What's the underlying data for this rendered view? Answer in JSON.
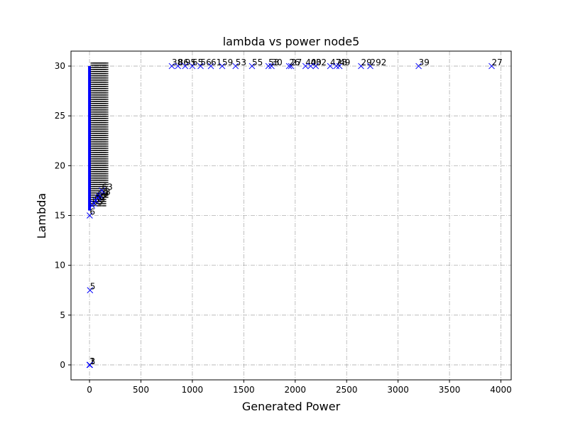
{
  "chart_data": {
    "type": "scatter",
    "title": "lambda vs power node5",
    "xlabel": "Generated Power",
    "ylabel": "Lambda",
    "xlim": [
      -180,
      4100
    ],
    "ylim": [
      -1.5,
      31.5
    ],
    "xticks": [
      0,
      500,
      1000,
      1500,
      2000,
      2500,
      3000,
      3500,
      4000
    ],
    "yticks": [
      0,
      5,
      10,
      15,
      20,
      25,
      30
    ],
    "grid": true,
    "marker": "x",
    "marker_color": "#0000ff",
    "series": [
      {
        "points": [
          {
            "x": 0,
            "y": 0,
            "label": "1"
          },
          {
            "x": 2,
            "y": 0,
            "label": "2"
          },
          {
            "x": 4,
            "y": 0,
            "label": "3"
          },
          {
            "x": 5,
            "y": 7.5,
            "label": "5"
          },
          {
            "x": 2,
            "y": 15,
            "label": "6"
          },
          {
            "x": 25,
            "y": 16,
            "label": "65"
          },
          {
            "x": 45,
            "y": 16.2,
            "label": "59"
          },
          {
            "x": 60,
            "y": 16.5,
            "label": "52"
          },
          {
            "x": 80,
            "y": 16.8,
            "label": "69"
          },
          {
            "x": 100,
            "y": 17.0,
            "label": "58"
          },
          {
            "x": 120,
            "y": 17.5,
            "label": "63"
          },
          {
            "x": 800,
            "y": 30,
            "label": "38"
          },
          {
            "x": 860,
            "y": 30,
            "label": "86"
          },
          {
            "x": 930,
            "y": 30,
            "label": "95"
          },
          {
            "x": 1000,
            "y": 30,
            "label": "65"
          },
          {
            "x": 1080,
            "y": 30,
            "label": "56"
          },
          {
            "x": 1180,
            "y": 30,
            "label": "61"
          },
          {
            "x": 1290,
            "y": 30,
            "label": "59"
          },
          {
            "x": 1420,
            "y": 30,
            "label": "53"
          },
          {
            "x": 1580,
            "y": 30,
            "label": "55"
          },
          {
            "x": 1740,
            "y": 30,
            "label": "53"
          },
          {
            "x": 1770,
            "y": 30,
            "label": "30"
          },
          {
            "x": 1940,
            "y": 30,
            "label": "26"
          },
          {
            "x": 1960,
            "y": 30,
            "label": "27"
          },
          {
            "x": 2100,
            "y": 30,
            "label": "40"
          },
          {
            "x": 2150,
            "y": 30,
            "label": "40"
          },
          {
            "x": 2200,
            "y": 30,
            "label": "32"
          },
          {
            "x": 2340,
            "y": 30,
            "label": "47"
          },
          {
            "x": 2400,
            "y": 30,
            "label": "28"
          },
          {
            "x": 2430,
            "y": 30,
            "label": "49"
          },
          {
            "x": 2640,
            "y": 30,
            "label": "29"
          },
          {
            "x": 2730,
            "y": 30,
            "label": "292"
          },
          {
            "x": 3200,
            "y": 30,
            "label": "39"
          },
          {
            "x": 3910,
            "y": 30,
            "label": "27"
          }
        ]
      }
    ]
  }
}
